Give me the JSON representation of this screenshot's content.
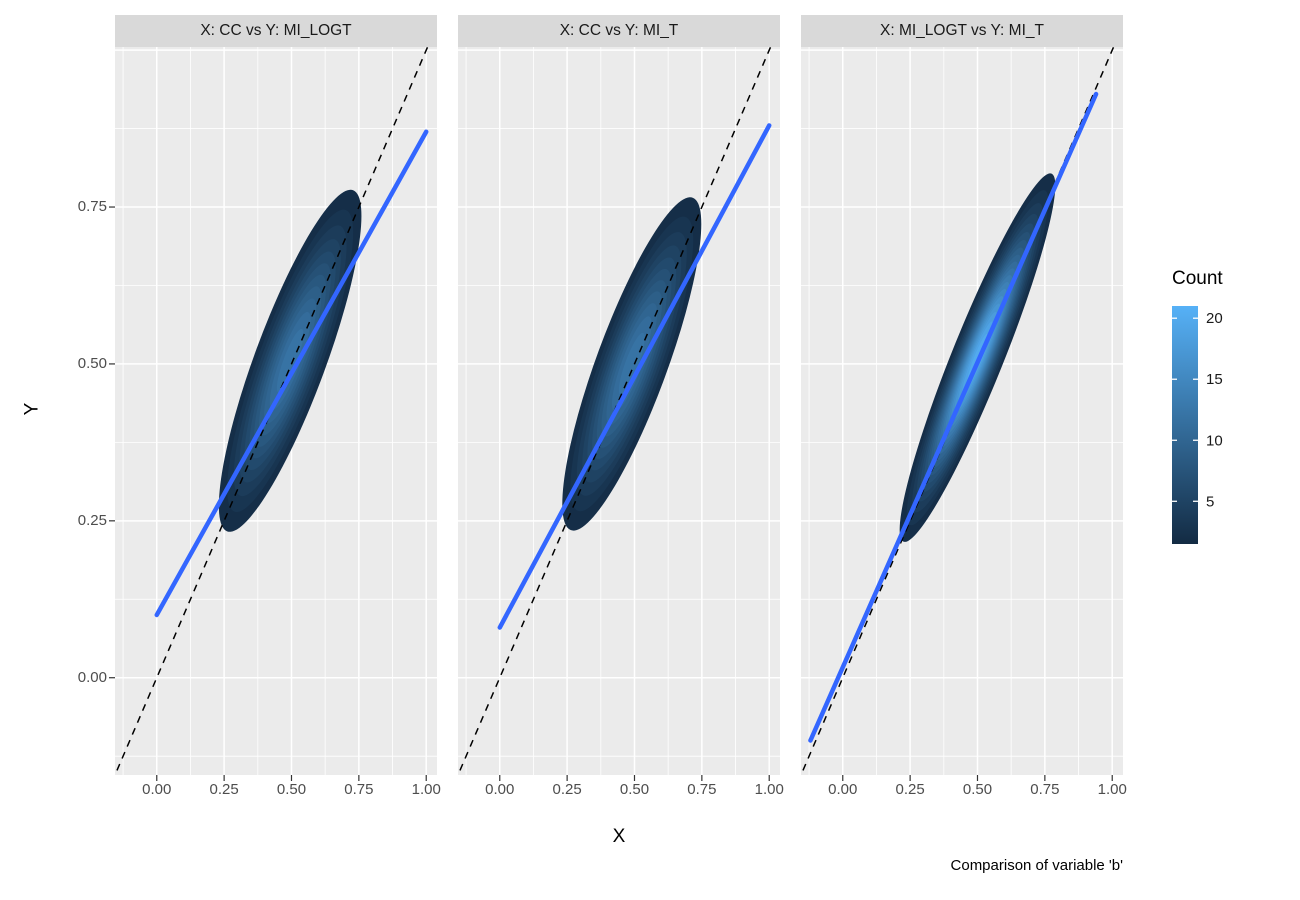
{
  "figure": {
    "x_axis_title": "X",
    "y_axis_title": "Y",
    "caption": "Comparison of variable 'b'"
  },
  "legend": {
    "title": "Count",
    "tick_labels": [
      "20",
      "15",
      "10",
      "5"
    ],
    "tick_values": [
      20,
      15,
      10,
      5
    ],
    "scale_min": 1.5,
    "scale_max": 21,
    "color_low": "#132B43",
    "color_high": "#56B1F7"
  },
  "chart_data": {
    "type": "density_contour",
    "description": "Three faceted filled 2D kernel-density contour plots comparing paired estimates on [0,1], each with a black dashed y=x identity line and a thick blue linear regression line; fill gradient encodes Count.",
    "x_domain": [
      -0.155,
      1.04
    ],
    "y_domain": [
      -0.155,
      1.005
    ],
    "x_ticks": [
      0,
      0.25,
      0.5,
      0.75,
      1
    ],
    "x_tick_labels": [
      "0.00",
      "0.25",
      "0.50",
      "0.75",
      "1.00"
    ],
    "y_ticks": [
      0,
      0.25,
      0.5,
      0.75
    ],
    "y_tick_labels": [
      "0.00",
      "0.25",
      "0.50",
      "0.75"
    ],
    "x_grid_major": [
      0,
      0.25,
      0.5,
      0.75,
      1
    ],
    "y_grid_major": [
      0,
      0.25,
      0.5,
      0.75,
      1
    ],
    "x_grid_minor": [
      -0.125,
      0.125,
      0.375,
      0.625,
      0.875
    ],
    "y_grid_minor": [
      -0.125,
      0.125,
      0.375,
      0.625,
      0.875
    ],
    "panel_bg": "#EBEBEB",
    "grid_color": "#FFFFFF",
    "strip_bg": "#D9D9D9",
    "facets": [
      {
        "strip_label": "X: CC vs Y: MI_LOGT",
        "density": {
          "center": [
            0.495,
            0.505
          ],
          "semi_major": 0.365,
          "semi_minor": 0.105,
          "angle_deg": 46,
          "count_min": 2,
          "count_max": 12
        },
        "regression_line": {
          "start": [
            0,
            0.1
          ],
          "end": [
            1,
            0.87
          ],
          "color": "#3366FF"
        },
        "identity_line": {
          "slope": 1,
          "intercept": 0,
          "style": "dashed",
          "color": "#000000"
        }
      },
      {
        "strip_label": "X: CC vs Y: MI_T",
        "density": {
          "center": [
            0.49,
            0.5
          ],
          "semi_major": 0.355,
          "semi_minor": 0.105,
          "angle_deg": 46,
          "count_min": 2,
          "count_max": 12
        },
        "regression_line": {
          "start": [
            0,
            0.08
          ],
          "end": [
            1,
            0.88
          ],
          "color": "#3366FF"
        },
        "identity_line": {
          "slope": 1,
          "intercept": 0,
          "style": "dashed",
          "color": "#000000"
        }
      },
      {
        "strip_label": "X: MI_LOGT vs Y: MI_T",
        "density": {
          "center": [
            0.5,
            0.51
          ],
          "semi_major": 0.405,
          "semi_minor": 0.075,
          "angle_deg": 45.5,
          "count_min": 2,
          "count_max": 20
        },
        "regression_line": {
          "start": [
            -0.12,
            -0.1
          ],
          "end": [
            0.94,
            0.93
          ],
          "color": "#3366FF"
        },
        "identity_line": {
          "slope": 1,
          "intercept": 0,
          "style": "dashed",
          "color": "#000000"
        }
      }
    ]
  }
}
